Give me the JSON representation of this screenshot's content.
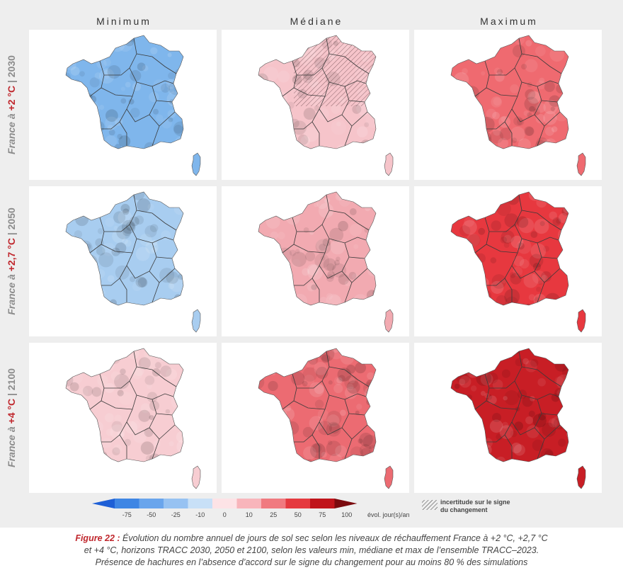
{
  "columns": [
    "Minimum",
    "Médiane",
    "Maximum"
  ],
  "rows": [
    {
      "prefix": "France à ",
      "level": "+2 °C",
      "sep": " | ",
      "year": "2030"
    },
    {
      "prefix": "France à ",
      "level": "+2,7 °C",
      "sep": " | ",
      "year": "2050"
    },
    {
      "prefix": "France à ",
      "level": "+4 °C",
      "sep": " | ",
      "year": "2100"
    }
  ],
  "panels": [
    [
      {
        "base": "#7fb6ec",
        "hatch": false
      },
      {
        "base": "#f6c4ca",
        "hatch": true
      },
      {
        "base": "#ef6a70",
        "hatch": false
      }
    ],
    [
      {
        "base": "#a8cdf0",
        "hatch": false
      },
      {
        "base": "#f2aab1",
        "hatch": false
      },
      {
        "base": "#e7383f",
        "hatch": false
      }
    ],
    [
      {
        "base": "#f7cdd2",
        "hatch": false
      },
      {
        "base": "#ec6b72",
        "hatch": false
      },
      {
        "base": "#c81e25",
        "hatch": false
      }
    ]
  ],
  "legend": {
    "ticks": [
      "-75",
      "-50",
      "-25",
      "-10",
      "0",
      "10",
      "25",
      "50",
      "75",
      "100"
    ],
    "colors": [
      "#1e5fd6",
      "#3f86e4",
      "#6aa5ec",
      "#97c2f2",
      "#c8e0f7",
      "#fde3e6",
      "#f8b5bb",
      "#f07a80",
      "#e53a40",
      "#c0141b",
      "#7a0a0e"
    ],
    "unit": "évol. jour(s)/an",
    "hatch_label_1": "incertitude sur le signe",
    "hatch_label_2": "du changement"
  },
  "caption": {
    "lead": "Figure 22 :",
    "line1": " Évolution du nombre annuel de jours de sol sec selon les niveaux de réchauffement France à +2 °C, +2,7 °C",
    "line2": "et +4 °C, horizons TRACC 2030, 2050 et 2100, selon les valeurs min, médiane et max de l’ensemble TRACC–2023.",
    "line3": "Présence de hachures en l’absence d’accord sur le signe du changement pour au moins 80 % des simulations"
  }
}
